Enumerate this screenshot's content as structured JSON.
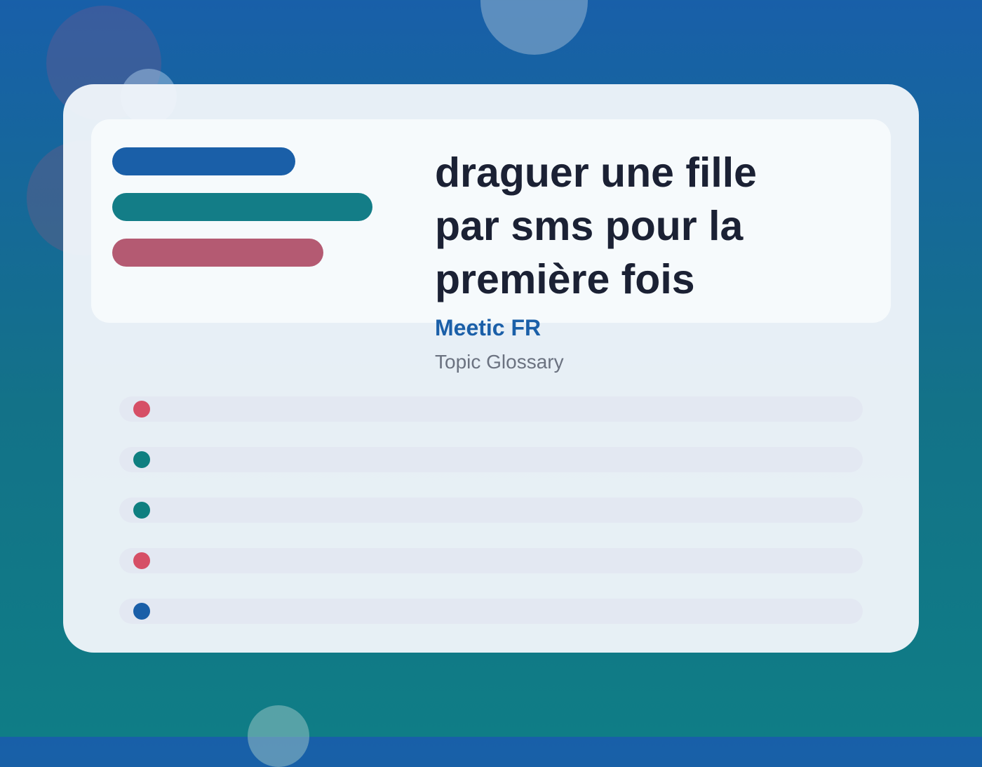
{
  "card": {
    "title": "draguer une fille par sms pour la première fois",
    "brand": "Meetic FR",
    "subtitle": "Topic Glossary"
  }
}
